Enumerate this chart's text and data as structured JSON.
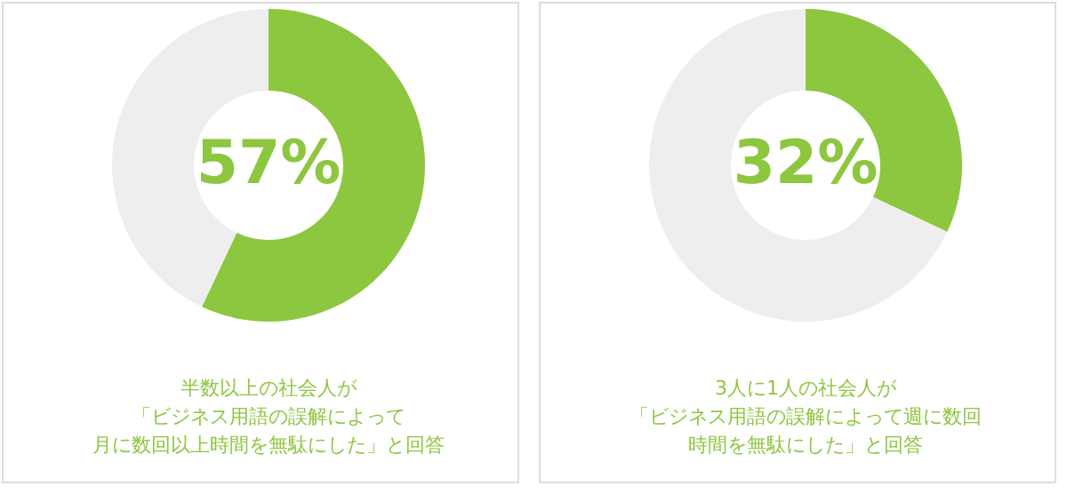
{
  "chart_data": [
    {
      "type": "donut",
      "categories": [
        null,
        null
      ],
      "values": [
        57,
        43
      ],
      "colors": [
        "#8dc63f",
        "#eeeeee"
      ],
      "value_labels": [
        "57%",
        null
      ],
      "annotations": [
        "半数以上の社会人が",
        "「ビジネス用語の誤解によって",
        "月に数回以上時間を無駄にした」と回答"
      ]
    },
    {
      "type": "donut",
      "categories": [
        null,
        null
      ],
      "values": [
        32,
        68
      ],
      "colors": [
        "#8dc63f",
        "#eeeeee"
      ],
      "value_labels": [
        "32%",
        null
      ],
      "annotations": [
        "3人に1人の社会人が",
        "「ビジネス用語の誤解によって週に数回",
        "時間を無駄にした」と回答"
      ]
    }
  ]
}
